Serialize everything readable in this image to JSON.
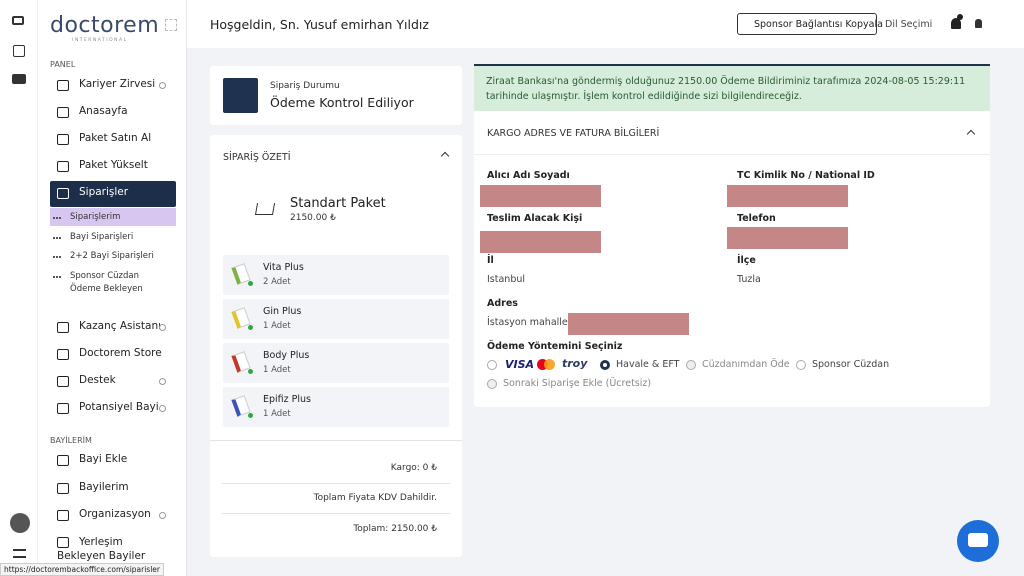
{
  "sidebar": {
    "brand": "doctorem",
    "brand_sub": "INTERNATIONAL",
    "panel_title": "PANEL",
    "panel_items": [
      "Kariyer Zirvesi",
      "Anasayfa",
      "Paket Satın Al",
      "Paket Yükselt",
      "Siparişler"
    ],
    "sub_items": [
      "Siparişlerim",
      "Bayi Siparişleri",
      "2+2 Bayi Siparişleri",
      "Sponsor Cüzdan Ödeme Bekleyen"
    ],
    "more_items": [
      "Kazanç Asistanı",
      "Doctorem Store",
      "Destek",
      "Potansiyel Bayi"
    ],
    "dealers_title": "BAYİLERİM",
    "dealer_items": [
      "Bayi Ekle",
      "Bayilerim",
      "Organizasyon",
      "Yerleşim Bekleyen Bayiler"
    ]
  },
  "header": {
    "welcome": "Hoşgeldin, Sn. Yusuf emirhan Yıldız",
    "sponsor_button": "Sponsor Bağlantısı Kopyala",
    "language": "Dil Seçimi"
  },
  "status": {
    "label": "Sipariş Durumu",
    "value": "Ödeme Kontrol Ediliyor"
  },
  "summary": {
    "title": "SİPARİŞ ÖZETİ",
    "package": "Standart Paket",
    "package_price": "2150.00 ₺",
    "items": [
      {
        "name": "Vita Plus",
        "qty": "2 Adet"
      },
      {
        "name": "Gin Plus",
        "qty": "1 Adet"
      },
      {
        "name": "Body Plus",
        "qty": "1 Adet"
      },
      {
        "name": "Epifiz Plus",
        "qty": "1 Adet"
      }
    ],
    "shipping": "Kargo: 0 ₺",
    "vat_note": "Toplam Fiyata KDV Dahildir.",
    "total": "Toplam: 2150.00 ₺"
  },
  "alert": "Ziraat Bankası'na göndermiş olduğunuz 2150.00 Ödeme Bildiriminiz tarafımıza 2024-08-05 15:29:11 tarihinde ulaşmıştır. İşlem kontrol edildiğinde sizi bilgilendireceğiz.",
  "shipping_form": {
    "title": "KARGO ADRES VE FATURA BİLGİLERİ",
    "fields": {
      "recipient": "Alıcı Adı Soyadı",
      "national_id": "TC Kimlik No / National ID",
      "receiver": "Teslim Alacak Kişi",
      "phone": "Telefon",
      "city_label": "İl",
      "city": "Istanbul",
      "district_label": "İlçe",
      "district": "Tuzla",
      "address_label": "Adres",
      "address": "İstasyon mahallesi"
    },
    "payment_title": "Ödeme Yöntemini Seçiniz",
    "card_logos": [
      "VISA",
      "troy"
    ],
    "payment_options": [
      "Havale & EFT",
      "Cüzdanımdan Öde",
      "Sponsor Cüzdan",
      "Sonraki Siparişe Ekle (Ücretsiz)"
    ]
  },
  "status_bar": "https://doctorembackoffice.com/siparisler"
}
